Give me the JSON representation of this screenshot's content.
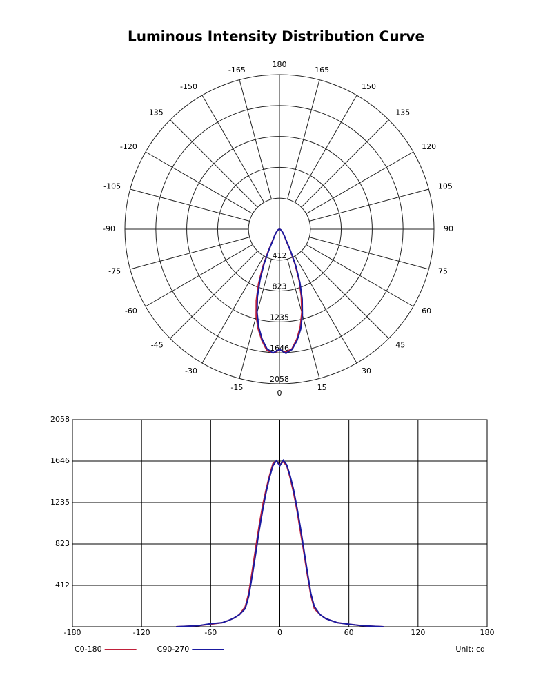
{
  "title": "Luminous Intensity Distribution Curve",
  "chart_data": [
    {
      "type": "polar",
      "x": [
        -90,
        -80,
        -70,
        -60,
        -50,
        -45,
        -40,
        -35,
        -30,
        -27,
        -24,
        -21,
        -18,
        -15,
        -12,
        -9,
        -6,
        -3,
        0,
        3,
        6,
        9,
        12,
        15,
        18,
        21,
        24,
        27,
        30,
        35,
        40,
        45,
        50,
        60,
        70,
        80,
        90
      ],
      "series": [
        {
          "color": "#c0203a",
          "values": [
            0,
            5,
            12,
            25,
            40,
            60,
            85,
            120,
            200,
            330,
            550,
            780,
            1000,
            1200,
            1360,
            1500,
            1620,
            1650,
            1610,
            1640,
            1600,
            1480,
            1330,
            1150,
            940,
            730,
            510,
            310,
            180,
            120,
            80,
            60,
            40,
            25,
            12,
            5,
            0
          ]
        },
        {
          "color": "#1a1aa0",
          "values": [
            0,
            5,
            12,
            30,
            40,
            60,
            85,
            120,
            180,
            300,
            500,
            720,
            950,
            1150,
            1330,
            1480,
            1600,
            1650,
            1600,
            1655,
            1610,
            1500,
            1360,
            1180,
            980,
            760,
            540,
            330,
            200,
            120,
            80,
            60,
            40,
            25,
            12,
            5,
            0
          ]
        }
      ],
      "rlim": [
        0,
        2058
      ],
      "rticks": [
        412,
        823,
        1235,
        1646,
        2058
      ],
      "thetaticks": [
        -165,
        -150,
        -135,
        -120,
        -105,
        -90,
        -75,
        -60,
        -45,
        -30,
        -15,
        0,
        15,
        30,
        45,
        60,
        75,
        90,
        105,
        120,
        135,
        150,
        165,
        180
      ]
    },
    {
      "type": "line",
      "x": [
        -90,
        -80,
        -70,
        -60,
        -50,
        -45,
        -40,
        -35,
        -30,
        -27,
        -24,
        -21,
        -18,
        -15,
        -12,
        -9,
        -6,
        -3,
        0,
        3,
        6,
        9,
        12,
        15,
        18,
        21,
        24,
        27,
        30,
        35,
        40,
        45,
        50,
        60,
        70,
        80,
        90
      ],
      "series": [
        {
          "name": "C0-180",
          "color": "#c0203a",
          "values": [
            0,
            5,
            12,
            25,
            40,
            60,
            85,
            120,
            200,
            330,
            550,
            780,
            1000,
            1200,
            1360,
            1500,
            1620,
            1650,
            1610,
            1640,
            1600,
            1480,
            1330,
            1150,
            940,
            730,
            510,
            310,
            180,
            120,
            80,
            60,
            40,
            25,
            12,
            5,
            0
          ]
        },
        {
          "name": "C90-270",
          "color": "#1a1aa0",
          "values": [
            0,
            5,
            12,
            30,
            40,
            60,
            85,
            120,
            180,
            300,
            500,
            720,
            950,
            1150,
            1330,
            1480,
            1600,
            1650,
            1600,
            1655,
            1610,
            1500,
            1360,
            1180,
            980,
            760,
            540,
            330,
            200,
            120,
            80,
            60,
            40,
            25,
            12,
            5,
            0
          ]
        }
      ],
      "xlim": [
        -180,
        180
      ],
      "xticks": [
        -180,
        -120,
        -60,
        0,
        60,
        120,
        180
      ],
      "ylim": [
        0,
        2058
      ],
      "yticks": [
        412,
        823,
        1235,
        1646,
        2058
      ],
      "grid": true,
      "annotation": "Unit: cd"
    }
  ]
}
